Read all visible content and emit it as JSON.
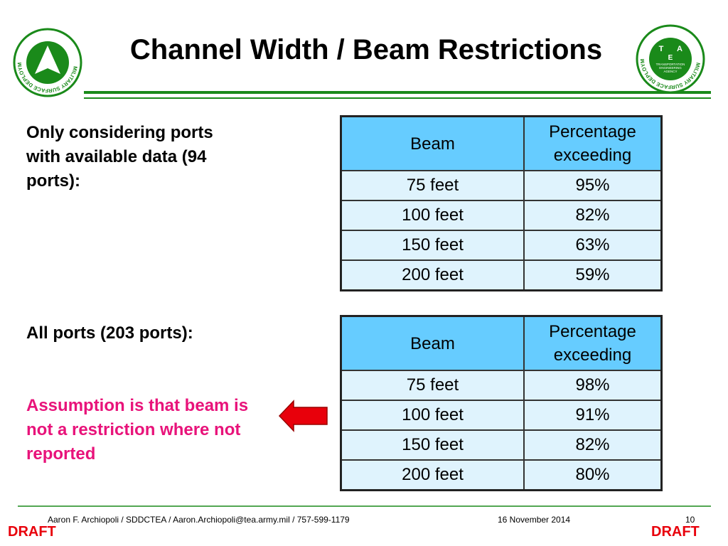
{
  "header": {
    "title": "Channel Width / Beam Restrictions",
    "left_logo": {
      "ring_text": "MILITARY SURFACE DEPLOYMENT AND DISTRIBUTION COMMAND"
    },
    "right_logo": {
      "ring_text": "MILITARY SURFACE DEPLOYMENT AND DISTRIBUTION COMMAND",
      "letters": [
        "T",
        "A",
        "E"
      ],
      "inner_text": [
        "TRANSPORTATION",
        "ENGINEERING",
        "AGENCY"
      ]
    }
  },
  "sections": [
    {
      "label": "Only considering ports with available data (94 ports):",
      "table": {
        "header": [
          "Beam",
          "Percentage exceeding"
        ],
        "rows": [
          [
            "75 feet",
            "95%"
          ],
          [
            "100 feet",
            "82%"
          ],
          [
            "150 feet",
            "63%"
          ],
          [
            "200 feet",
            "59%"
          ]
        ]
      }
    },
    {
      "label": "All ports (203 ports):",
      "note": "Assumption is that beam is not a restriction where not reported",
      "table": {
        "header": [
          "Beam",
          "Percentage exceeding"
        ],
        "rows": [
          [
            "75 feet",
            "98%"
          ],
          [
            "100 feet",
            "91%"
          ],
          [
            "150 feet",
            "82%"
          ],
          [
            "200 feet",
            "80%"
          ]
        ]
      }
    }
  ],
  "footer": {
    "author": "Aaron F. Archiopoli / SDDCTEA / Aaron.Archiopoli@tea.army.mil / 757-599-1179",
    "date": "16 November 2014",
    "page": "10",
    "draft_left": "DRAFT",
    "draft_right": "DRAFT"
  }
}
